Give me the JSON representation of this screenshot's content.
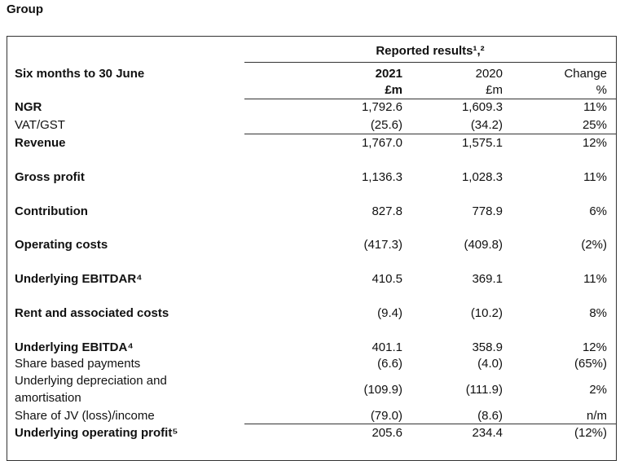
{
  "header": {
    "title": "Group"
  },
  "table": {
    "group_header": "Reported results¹,²",
    "columns": [
      "Six months to 30 June",
      "2021",
      "2020",
      "Change"
    ],
    "units": [
      "£m",
      "£m",
      "%"
    ],
    "rows": [
      {
        "label": "NGR",
        "bold": true,
        "values": [
          "1,792.6",
          "1,609.3",
          "11%"
        ]
      },
      {
        "label": "VAT/GST",
        "bold": false,
        "values": [
          "(25.6)",
          "(34.2)",
          "25%"
        ]
      },
      {
        "label": "Revenue",
        "bold": true,
        "values": [
          "1,767.0",
          "1,575.1",
          "12%"
        ]
      },
      {
        "label": "Gross profit",
        "bold": true,
        "values": [
          "1,136.3",
          "1,028.3",
          "11%"
        ]
      },
      {
        "label": "Contribution",
        "bold": true,
        "values": [
          "827.8",
          "778.9",
          "6%"
        ]
      },
      {
        "label": "Operating costs",
        "bold": true,
        "values": [
          "(417.3)",
          "(409.8)",
          "(2%)"
        ]
      },
      {
        "label": "Underlying EBITDAR⁴",
        "bold": true,
        "values": [
          "410.5",
          "369.1",
          "11%"
        ]
      },
      {
        "label": "Rent and associated costs",
        "bold": true,
        "values": [
          "(9.4)",
          "(10.2)",
          "8%"
        ]
      },
      {
        "label": "Underlying EBITDA⁴",
        "bold": true,
        "values": [
          "401.1",
          "358.9",
          "12%"
        ]
      },
      {
        "label": "Share based payments",
        "bold": false,
        "values": [
          "(6.6)",
          "(4.0)",
          "(65%)"
        ]
      },
      {
        "label": "Underlying depreciation and amortisation",
        "bold": false,
        "values": [
          "(109.9)",
          "(111.9)",
          "2%"
        ]
      },
      {
        "label": "Share of JV (loss)/income",
        "bold": false,
        "values": [
          "(79.0)",
          "(8.6)",
          "n/m"
        ]
      },
      {
        "label": "Underlying operating profit⁵",
        "bold": true,
        "values": [
          "205.6",
          "234.4",
          "(12%)"
        ]
      }
    ]
  }
}
